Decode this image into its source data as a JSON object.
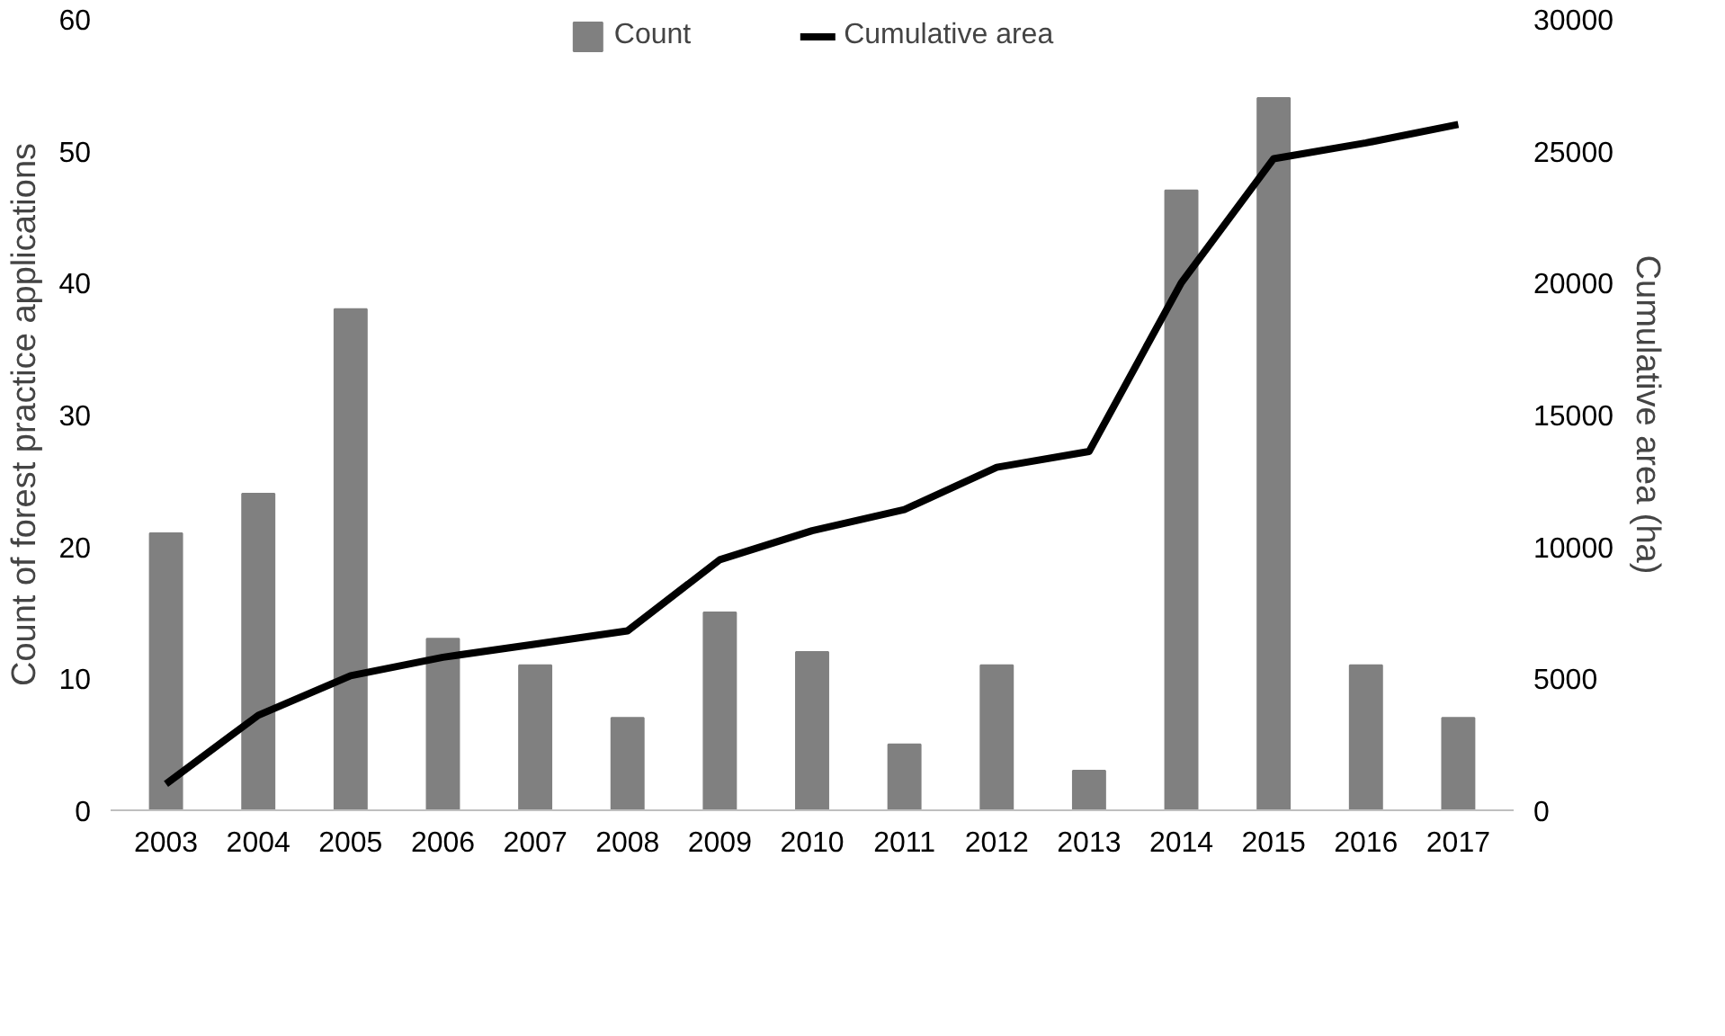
{
  "chart_data": {
    "type": "bar",
    "ylabel": "Count of forest practice applications",
    "y2label": "Cumulative area (ha)",
    "categories": [
      "2003",
      "2004",
      "2005",
      "2006",
      "2007",
      "2008",
      "2009",
      "2010",
      "2011",
      "2012",
      "2013",
      "2014",
      "2015",
      "2016",
      "2017"
    ],
    "series": [
      {
        "name": "Count",
        "color": "#808080",
        "values": [
          21,
          24,
          38,
          13,
          11,
          7,
          15,
          12,
          5,
          11,
          3,
          47,
          54,
          11,
          7
        ]
      },
      {
        "name": "Cumulative area",
        "type": "line",
        "axis": "y2",
        "color": "#000000",
        "values": [
          1000,
          3600,
          5100,
          5800,
          6300,
          6800,
          9500,
          10600,
          11400,
          13000,
          13600,
          20000,
          24700,
          25300,
          26000
        ]
      }
    ],
    "ylim": [
      0,
      60
    ],
    "yticks": [
      0,
      10,
      20,
      30,
      40,
      50,
      60
    ],
    "y2lim": [
      0,
      30000
    ],
    "y2ticks": [
      0,
      5000,
      10000,
      15000,
      20000,
      25000,
      30000
    ],
    "legend": "top"
  }
}
